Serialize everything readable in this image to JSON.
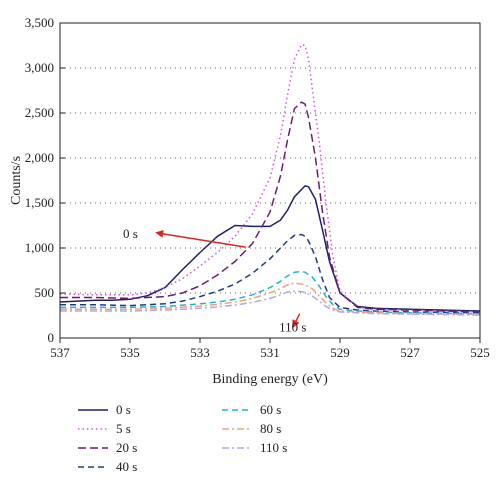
{
  "chart_data": {
    "type": "line",
    "xlabel": "Binding energy (eV)",
    "ylabel": "Counts/s",
    "xlim": [
      537,
      525
    ],
    "ylim": [
      0,
      3500
    ],
    "x_reversed": true,
    "xticks": [
      537,
      535,
      533,
      531,
      529,
      527,
      525
    ],
    "yticks": [
      0,
      500,
      1000,
      1500,
      2000,
      2500,
      3000,
      3500
    ],
    "ytick_labels": [
      "0",
      "500",
      "1,000",
      "1,500",
      "2,000",
      "2,500",
      "3,000",
      "3,500"
    ],
    "grid": "horizontal-dotted",
    "legend_position": "bottom",
    "annotations": [
      {
        "text": "0 s",
        "x": 533.5,
        "y": 1150,
        "arrow_to": [
          534.2,
          1170
        ]
      },
      {
        "text": "110 s",
        "x": 530.3,
        "y": 70,
        "arrow_to": [
          530.3,
          450
        ]
      }
    ],
    "series": [
      {
        "name": "0 s",
        "color": "#1f1f6e",
        "dash": "solid",
        "x": [
          537,
          536.5,
          536,
          535.5,
          535,
          534.5,
          534,
          533.5,
          533,
          532.5,
          532,
          531.5,
          531,
          530.7,
          530.5,
          530.3,
          530.1,
          530,
          529.9,
          529.7,
          529.5,
          529.3,
          529,
          528.5,
          528,
          527,
          526,
          525
        ],
        "y": [
          400,
          410,
          420,
          420,
          430,
          470,
          560,
          760,
          950,
          1130,
          1250,
          1240,
          1240,
          1310,
          1420,
          1570,
          1650,
          1690,
          1680,
          1540,
          1200,
          850,
          500,
          350,
          330,
          320,
          310,
          300
        ]
      },
      {
        "name": "5 s",
        "color": "#d655d6",
        "dash": "dot",
        "x": [
          537,
          536,
          535,
          534.5,
          534,
          533.5,
          533,
          532.5,
          532,
          531.5,
          531,
          530.7,
          530.5,
          530.3,
          530.1,
          530,
          529.9,
          529.8,
          529.6,
          529.4,
          529.2,
          529,
          528.5,
          528,
          527,
          526,
          525
        ],
        "y": [
          490,
          480,
          480,
          500,
          560,
          660,
          800,
          950,
          1130,
          1380,
          1780,
          2250,
          2700,
          3100,
          3260,
          3250,
          3100,
          2800,
          2200,
          1500,
          900,
          520,
          340,
          320,
          310,
          300,
          290
        ]
      },
      {
        "name": "20 s",
        "color": "#6b1f6b",
        "dash": "longdash",
        "x": [
          537,
          536,
          535,
          534,
          533.5,
          533,
          532.5,
          532,
          531.5,
          531,
          530.7,
          530.5,
          530.3,
          530.1,
          530,
          529.9,
          529.7,
          529.5,
          529.3,
          529,
          528.5,
          528,
          527,
          526,
          525
        ],
        "y": [
          450,
          450,
          440,
          460,
          500,
          580,
          700,
          850,
          1050,
          1400,
          1800,
          2200,
          2550,
          2620,
          2600,
          2450,
          2000,
          1400,
          900,
          500,
          340,
          320,
          310,
          300,
          290
        ]
      },
      {
        "name": "40 s",
        "color": "#1f3a8a",
        "dash": "dash",
        "x": [
          537,
          536,
          535,
          534,
          533.5,
          533,
          532.5,
          532,
          531.5,
          531,
          530.7,
          530.5,
          530.3,
          530.1,
          530,
          529.9,
          529.7,
          529.5,
          529.3,
          529,
          528.5,
          528,
          527,
          526,
          525
        ],
        "y": [
          370,
          370,
          360,
          380,
          410,
          460,
          520,
          600,
          720,
          880,
          1000,
          1080,
          1140,
          1150,
          1130,
          1080,
          900,
          650,
          450,
          340,
          310,
          300,
          290,
          285,
          280
        ]
      },
      {
        "name": "60 s",
        "color": "#22b5c9",
        "dash": "dash",
        "x": [
          537,
          536,
          535,
          534,
          533,
          532.5,
          532,
          531.5,
          531,
          530.7,
          530.5,
          530.3,
          530.1,
          530,
          529.8,
          529.6,
          529.4,
          529.2,
          529,
          528.5,
          528,
          527,
          526,
          525
        ],
        "y": [
          340,
          340,
          340,
          350,
          380,
          400,
          430,
          480,
          560,
          630,
          690,
          730,
          740,
          730,
          680,
          580,
          460,
          370,
          320,
          300,
          290,
          280,
          275,
          270
        ]
      },
      {
        "name": "80 s",
        "color": "#f0a37a",
        "dash": "dashdot",
        "x": [
          537,
          536,
          535,
          534,
          533,
          532.5,
          532,
          531.5,
          531,
          530.7,
          530.5,
          530.3,
          530.1,
          530,
          529.8,
          529.6,
          529.4,
          529.2,
          529,
          528.5,
          528,
          527,
          526,
          525
        ],
        "y": [
          320,
          320,
          320,
          330,
          355,
          375,
          400,
          440,
          500,
          550,
          590,
          610,
          600,
          590,
          550,
          470,
          390,
          330,
          300,
          290,
          280,
          270,
          265,
          260
        ]
      },
      {
        "name": "110 s",
        "color": "#b3a6e6",
        "dash": "dashdot",
        "x": [
          537,
          536,
          535,
          534,
          533,
          532.5,
          532,
          531.5,
          531,
          530.7,
          530.5,
          530.3,
          530.1,
          530,
          529.8,
          529.6,
          529.4,
          529.2,
          529,
          528.5,
          528,
          527,
          526,
          525
        ],
        "y": [
          300,
          300,
          300,
          310,
          330,
          345,
          365,
          395,
          440,
          480,
          510,
          520,
          515,
          505,
          470,
          410,
          350,
          310,
          290,
          280,
          270,
          265,
          260,
          255
        ]
      }
    ]
  }
}
